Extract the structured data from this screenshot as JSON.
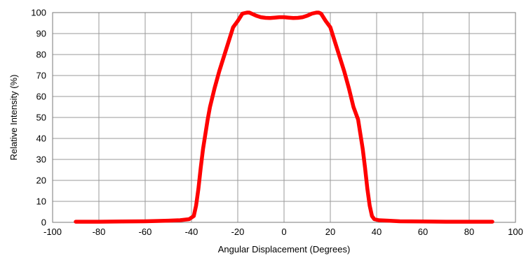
{
  "chart_data": {
    "type": "line",
    "xlabel": "Angular Displacement (Degrees)",
    "ylabel": "Relative Intensity (%)",
    "xlim": [
      -100,
      100
    ],
    "ylim": [
      0,
      100
    ],
    "x_ticks": [
      -100,
      -80,
      -60,
      -40,
      -20,
      0,
      20,
      40,
      60,
      80,
      100
    ],
    "y_ticks": [
      0,
      10,
      20,
      30,
      40,
      50,
      60,
      70,
      80,
      90,
      100
    ],
    "x_tick_labels": [
      "-100",
      "-80",
      "-60",
      "-40",
      "-20",
      "0",
      "20",
      "40",
      "60",
      "80",
      "100"
    ],
    "y_tick_labels": [
      "0",
      "10",
      "20",
      "30",
      "40",
      "50",
      "60",
      "70",
      "80",
      "90",
      "100"
    ],
    "grid": true,
    "legend": "none",
    "series": [
      {
        "color": "#ff0000",
        "x": [
          -90,
          -80,
          -70,
          -60,
          -50,
          -45,
          -41,
          -39,
          -38,
          -37,
          -36,
          -35,
          -34,
          -33,
          -32,
          -30,
          -28,
          -26,
          -24,
          -22,
          -20,
          -18,
          -16,
          -15,
          -14,
          -12,
          -10,
          -8,
          -6,
          -4,
          -2,
          0,
          2,
          4,
          6,
          8,
          10,
          12,
          14,
          15,
          16,
          18,
          20,
          22,
          24,
          26,
          28,
          30,
          32,
          33,
          34,
          35,
          36,
          37,
          38,
          39,
          41,
          45,
          50,
          60,
          70,
          80,
          90
        ],
        "y": [
          0.3,
          0.3,
          0.4,
          0.5,
          0.8,
          1.0,
          1.5,
          3,
          8,
          16,
          26,
          35,
          42,
          49,
          55,
          64,
          72,
          79,
          86,
          93,
          96,
          99.5,
          100,
          100,
          99.5,
          98.5,
          97.8,
          97.5,
          97.4,
          97.6,
          97.8,
          97.8,
          97.6,
          97.4,
          97.5,
          97.8,
          98.5,
          99.5,
          100,
          100,
          99.5,
          96,
          93,
          86,
          79,
          72,
          64,
          55,
          49,
          42,
          35,
          26,
          16,
          8,
          3,
          1.5,
          1.0,
          0.8,
          0.5,
          0.4,
          0.3,
          0.3,
          0.3
        ]
      }
    ]
  }
}
